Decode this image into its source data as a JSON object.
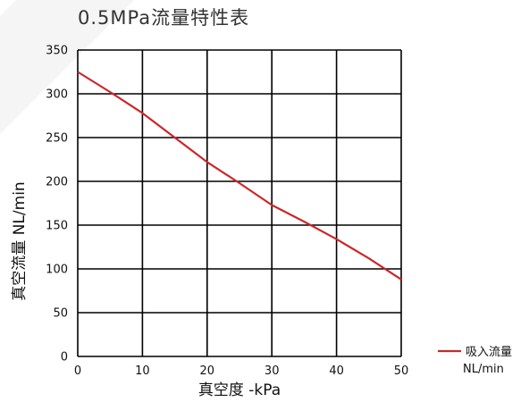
{
  "chart_data": {
    "type": "line",
    "title": "0.5MPa流量特性表",
    "xlabel": "真空度 -kPa",
    "ylabel": "真空流量 NL/min",
    "xlim": [
      0,
      50
    ],
    "ylim": [
      0,
      350
    ],
    "xticks": [
      0,
      10,
      20,
      30,
      40,
      50
    ],
    "yticks": [
      0,
      50,
      100,
      150,
      200,
      250,
      300,
      350
    ],
    "grid": true,
    "legend_position": "bottom-right",
    "series": [
      {
        "name": "吸入流量",
        "unit": "NL/min",
        "color": "#c8282b",
        "x": [
          0,
          5,
          10,
          15,
          20,
          25,
          30,
          35,
          40,
          45,
          50
        ],
        "y": [
          325,
          302,
          278,
          250,
          222,
          198,
          173,
          154,
          134,
          112,
          88
        ]
      }
    ]
  }
}
